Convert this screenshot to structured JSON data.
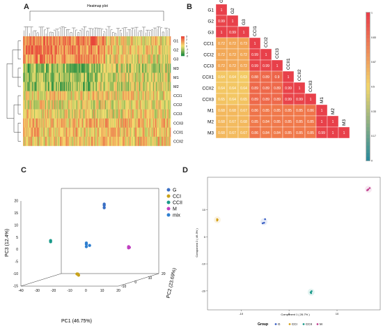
{
  "panels": {
    "a": "A",
    "b": "B",
    "c": "C",
    "d": "D"
  },
  "chart_data": [
    {
      "panel": "A",
      "type": "heatmap",
      "title": "Heatmap plot",
      "rows": [
        "G1",
        "G2",
        "G3",
        "M3",
        "M1",
        "M2",
        "CCI1",
        "CCI2",
        "CCI3",
        "CCII3",
        "CCII1",
        "CCII2"
      ],
      "colorbar_ticks": [
        "3",
        "2",
        "1",
        "0",
        "-1",
        "-2",
        "-3"
      ],
      "colorbar_range": [
        -3,
        3
      ],
      "colors": {
        "low": "#1b8a3f",
        "mid": "#f4e070",
        "high": "#e8473a"
      }
    },
    {
      "panel": "B",
      "type": "heatmap",
      "labels": [
        "G1",
        "G2",
        "G3",
        "CCI1",
        "CCI2",
        "CCI3",
        "CCII1",
        "CCII2",
        "CCII3",
        "M1",
        "M2",
        "M3"
      ],
      "matrix": [
        [
          1
        ],
        [
          0.99,
          1
        ],
        [
          1,
          0.99,
          1
        ],
        [
          0.72,
          0.72,
          0.73,
          1
        ],
        [
          0.72,
          0.72,
          0.72,
          0.99,
          1
        ],
        [
          0.72,
          0.72,
          0.72,
          0.99,
          0.99,
          1
        ],
        [
          0.64,
          0.64,
          0.63,
          0.88,
          0.89,
          0.9,
          1
        ],
        [
          0.64,
          0.64,
          0.64,
          0.89,
          0.89,
          0.89,
          0.99,
          1
        ],
        [
          0.65,
          0.64,
          0.65,
          0.89,
          0.89,
          0.89,
          0.99,
          0.99,
          1
        ],
        [
          0.68,
          0.68,
          0.67,
          0.86,
          0.85,
          0.85,
          0.85,
          0.85,
          0.86,
          1
        ],
        [
          0.68,
          0.67,
          0.68,
          0.85,
          0.84,
          0.85,
          0.85,
          0.85,
          0.85,
          1,
          1
        ],
        [
          0.68,
          0.67,
          0.67,
          0.86,
          0.84,
          0.84,
          0.85,
          0.85,
          0.85,
          0.99,
          1,
          1
        ]
      ],
      "colorbar_ticks": [
        "1",
        "0.83",
        "0.67",
        "0.5",
        "0.33",
        "0.17",
        "0"
      ],
      "colors": {
        "low": "#2e8b9a",
        "mid": "#f2d66b",
        "high": "#e8404a"
      }
    },
    {
      "panel": "C",
      "type": "scatter",
      "xlabel": "PC1 (46.75%)",
      "ylabel": "PC3 (12.4%)",
      "zlabel": "PC2 (23.69%)",
      "x_ticks": [
        "-40",
        "-30",
        "-20",
        "-10",
        "0",
        "10",
        "20"
      ],
      "y_ticks": [
        "20",
        "15",
        "10",
        "5",
        "0",
        "-5",
        "-10",
        "-15"
      ],
      "z_ticks": [
        "-10",
        "0",
        "10",
        "20"
      ],
      "legend": [
        {
          "name": "G",
          "color": "#3a6fc4"
        },
        {
          "name": "CCI",
          "color": "#c9a21a"
        },
        {
          "name": "CCII",
          "color": "#1a9a8a"
        },
        {
          "name": "M",
          "color": "#c03fc0"
        },
        {
          "name": "mix",
          "color": "#2e7fd0"
        }
      ],
      "series": [
        {
          "name": "G",
          "points": [
            [
              3,
              0,
              17
            ],
            [
              3,
              0,
              16.5
            ],
            [
              3,
              0,
              15.5
            ]
          ]
        },
        {
          "name": "CCI",
          "points": [
            [
              -5,
              -10,
              -10
            ],
            [
              -5.5,
              -10,
              -10
            ],
            [
              -4.5,
              -10,
              -10.5
            ]
          ]
        },
        {
          "name": "CCII",
          "points": [
            [
              -30,
              0,
              2
            ],
            [
              -30,
              0,
              1.5
            ]
          ]
        },
        {
          "name": "M",
          "points": [
            [
              18,
              0,
              -0.5
            ],
            [
              18.5,
              0,
              -0.8
            ],
            [
              18,
              0,
              -1
            ]
          ]
        },
        {
          "name": "mix",
          "points": [
            [
              -8,
              0,
              1
            ],
            [
              -8,
              0,
              0.5
            ],
            [
              -6,
              0,
              0
            ],
            [
              -8,
              0,
              -0.5
            ]
          ]
        }
      ]
    },
    {
      "panel": "D",
      "type": "scatter",
      "xlabel": "Component 1 ( 26.7% )",
      "ylabel": "Component 2 ( 46.3% )",
      "x_ticks": [
        "-10",
        "0",
        "10"
      ],
      "y_ticks": [
        "10",
        "0",
        "-10",
        "-20"
      ],
      "xlim": [
        -17,
        19
      ],
      "ylim": [
        -27,
        22
      ],
      "legend_title": "Group",
      "legend": [
        {
          "name": "G",
          "color": "#3a5fc4"
        },
        {
          "name": "CCI",
          "color": "#d4a017"
        },
        {
          "name": "CCII",
          "color": "#1a9a8a"
        },
        {
          "name": "M",
          "color": "#c03f8f"
        }
      ],
      "series": [
        {
          "name": "CCI",
          "points": [
            [
              -15,
              6.5
            ],
            [
              -15,
              6
            ],
            [
              -14.9,
              6.3
            ]
          ]
        },
        {
          "name": "G",
          "points": [
            [
              -5,
              6.5
            ],
            [
              -5.2,
              5.2
            ],
            [
              -5.5,
              5
            ]
          ]
        },
        {
          "name": "CCII",
          "points": [
            [
              4.5,
              -20.5
            ],
            [
              4.7,
              -20.1
            ],
            [
              4.6,
              -20.8
            ]
          ]
        },
        {
          "name": "M",
          "points": [
            [
              16.5,
              17.5
            ],
            [
              16.8,
              18
            ],
            [
              16.3,
              17.2
            ]
          ]
        }
      ]
    }
  ]
}
